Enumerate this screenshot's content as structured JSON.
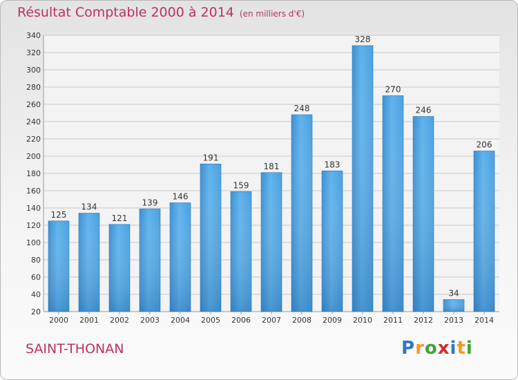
{
  "header": {
    "title": "Résultat Comptable 2000 à 2014",
    "subtitle": "(en milliers d'€)"
  },
  "footer": {
    "location": "SAINT-THONAN",
    "brand": {
      "p1": "P",
      "p2": "r",
      "p3": "o",
      "p4": "x",
      "p5": "i",
      "p6": "t",
      "p7": "i"
    }
  },
  "colors": {
    "title": "#c0305a",
    "bar_light": "#5aafe8",
    "bar_dark": "#2f80c4",
    "grid": "#c8c8c8"
  },
  "chart_data": {
    "type": "bar",
    "title": "Résultat Comptable 2000 à 2014",
    "subtitle": "(en milliers d'€)",
    "categories": [
      "2000",
      "2001",
      "2002",
      "2003",
      "2004",
      "2005",
      "2006",
      "2007",
      "2008",
      "2009",
      "2010",
      "2011",
      "2012",
      "2013",
      "2014"
    ],
    "values": [
      125,
      134,
      121,
      139,
      146,
      191,
      159,
      181,
      248,
      183,
      328,
      270,
      246,
      34,
      206
    ],
    "ylim": [
      20,
      340
    ],
    "yticks": [
      20,
      40,
      60,
      80,
      100,
      120,
      140,
      160,
      180,
      200,
      220,
      240,
      260,
      280,
      300,
      320,
      340
    ],
    "grid": true,
    "data_labels": true
  }
}
